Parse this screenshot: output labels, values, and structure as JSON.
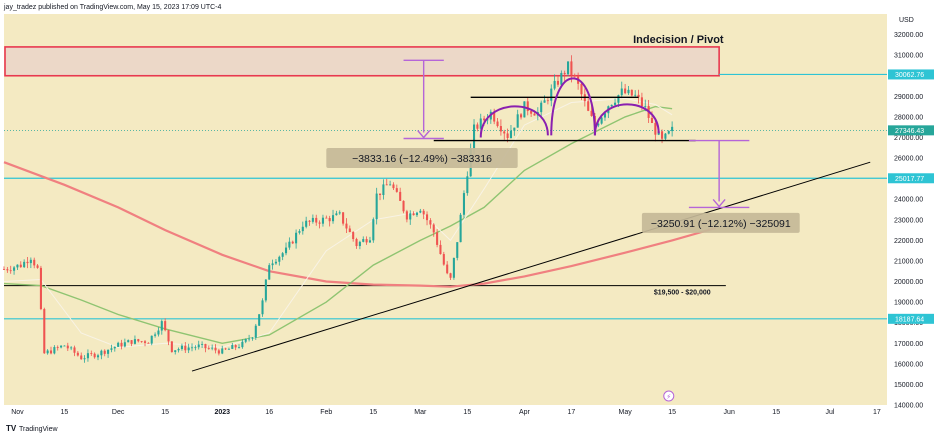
{
  "header": {
    "published": "jay_tradez published on TradingView.com, May 15, 2023 17:09 UTC-4"
  },
  "footer": {
    "brand": "TradingView"
  },
  "colors": {
    "background": "#f4eac2",
    "bull": "#26a69a",
    "bear": "#ef5350",
    "ma_slow": "#f08080",
    "ma_mid": "#8fc471",
    "ma_fast": "#f8f3e6",
    "cyan": "#2ec4d4",
    "zone_border": "#e8384f",
    "measure": "#b565d8",
    "pattern": "#8a1fb0"
  },
  "chart_data": {
    "type": "candlestick",
    "currency": "USD",
    "ylim": [
      14000,
      33000
    ],
    "y_ticks": [
      "32000.00",
      "31000.00",
      "30000.00",
      "29000.00",
      "28000.00",
      "27000.00",
      "26000.00",
      "25000.00",
      "24000.00",
      "23000.00",
      "22000.00",
      "21000.00",
      "20000.00",
      "19000.00",
      "18000.00",
      "17000.00",
      "16000.00",
      "15000.00",
      "14000.00"
    ],
    "x_range": [
      "2022-10-28",
      "2023-07-18"
    ],
    "x_ticks": [
      {
        "date": "2022-11-01",
        "label": "Nov"
      },
      {
        "date": "2022-11-15",
        "label": "15"
      },
      {
        "date": "2022-12-01",
        "label": "Dec"
      },
      {
        "date": "2022-12-15",
        "label": "15"
      },
      {
        "date": "2023-01-01",
        "label": "2023"
      },
      {
        "date": "2023-01-15",
        "label": "16"
      },
      {
        "date": "2023-02-01",
        "label": "Feb"
      },
      {
        "date": "2023-02-15",
        "label": "15"
      },
      {
        "date": "2023-03-01",
        "label": "Mar"
      },
      {
        "date": "2023-03-15",
        "label": "15"
      },
      {
        "date": "2023-04-01",
        "label": "Apr"
      },
      {
        "date": "2023-04-15",
        "label": "17"
      },
      {
        "date": "2023-05-01",
        "label": "May"
      },
      {
        "date": "2023-05-15",
        "label": "15"
      },
      {
        "date": "2023-06-01",
        "label": "Jun"
      },
      {
        "date": "2023-06-15",
        "label": "15"
      },
      {
        "date": "2023-07-01",
        "label": "Jul"
      },
      {
        "date": "2023-07-15",
        "label": "17"
      }
    ],
    "close_path": [
      [
        "2022-10-28",
        20600
      ],
      [
        "2022-11-02",
        20800
      ],
      [
        "2022-11-05",
        21200
      ],
      [
        "2022-11-07",
        20600
      ],
      [
        "2022-11-08",
        18500
      ],
      [
        "2022-11-09",
        16500
      ],
      [
        "2022-11-12",
        16700
      ],
      [
        "2022-11-15",
        16900
      ],
      [
        "2022-11-20",
        16300
      ],
      [
        "2022-11-25",
        16500
      ],
      [
        "2022-12-01",
        16900
      ],
      [
        "2022-12-05",
        17100
      ],
      [
        "2022-12-10",
        17100
      ],
      [
        "2022-12-14",
        18000
      ],
      [
        "2022-12-17",
        16700
      ],
      [
        "2022-12-25",
        16850
      ],
      [
        "2023-01-01",
        16600
      ],
      [
        "2023-01-07",
        16950
      ],
      [
        "2023-01-10",
        17400
      ],
      [
        "2023-01-13",
        19000
      ],
      [
        "2023-01-15",
        20900
      ],
      [
        "2023-01-20",
        21500
      ],
      [
        "2023-01-25",
        22800
      ],
      [
        "2023-01-31",
        23000
      ],
      [
        "2023-02-05",
        23200
      ],
      [
        "2023-02-10",
        21800
      ],
      [
        "2023-02-14",
        22200
      ],
      [
        "2023-02-16",
        24200
      ],
      [
        "2023-02-20",
        24800
      ],
      [
        "2023-02-25",
        23200
      ],
      [
        "2023-03-01",
        23600
      ],
      [
        "2023-03-05",
        22400
      ],
      [
        "2023-03-09",
        20300
      ],
      [
        "2023-03-10",
        20100
      ],
      [
        "2023-03-12",
        22000
      ],
      [
        "2023-03-14",
        24300
      ],
      [
        "2023-03-17",
        27400
      ],
      [
        "2023-03-22",
        28200
      ],
      [
        "2023-03-27",
        27100
      ],
      [
        "2023-04-01",
        28500
      ],
      [
        "2023-04-05",
        28200
      ],
      [
        "2023-04-10",
        29500
      ],
      [
        "2023-04-14",
        30450
      ],
      [
        "2023-04-17",
        29500
      ],
      [
        "2023-04-20",
        28200
      ],
      [
        "2023-04-22",
        27600
      ],
      [
        "2023-04-26",
        28600
      ],
      [
        "2023-04-30",
        29200
      ],
      [
        "2023-05-04",
        29000
      ],
      [
        "2023-05-07",
        28400
      ],
      [
        "2023-05-09",
        27600
      ],
      [
        "2023-05-12",
        26800
      ],
      [
        "2023-05-15",
        27346
      ]
    ],
    "moving_averages": [
      {
        "key": "ma200",
        "color": "#f08080",
        "points": [
          [
            "2022-10-28",
            25800
          ],
          [
            "2022-11-15",
            24700
          ],
          [
            "2022-12-01",
            23600
          ],
          [
            "2022-12-15",
            22500
          ],
          [
            "2023-01-01",
            21300
          ],
          [
            "2023-01-15",
            20500
          ],
          [
            "2023-02-01",
            20000
          ],
          [
            "2023-02-15",
            19850
          ],
          [
            "2023-03-01",
            19800
          ],
          [
            "2023-03-10",
            19750
          ],
          [
            "2023-03-20",
            19900
          ],
          [
            "2023-04-01",
            20250
          ],
          [
            "2023-04-15",
            20750
          ],
          [
            "2023-05-01",
            21400
          ],
          [
            "2023-05-15",
            22000
          ],
          [
            "2023-05-28",
            22600
          ]
        ]
      },
      {
        "key": "ma50",
        "color": "#8fc471",
        "points": [
          [
            "2022-10-28",
            19900
          ],
          [
            "2022-11-08",
            19800
          ],
          [
            "2022-11-20",
            19100
          ],
          [
            "2022-12-01",
            18400
          ],
          [
            "2022-12-15",
            17700
          ],
          [
            "2023-01-01",
            17000
          ],
          [
            "2023-01-15",
            17400
          ],
          [
            "2023-02-01",
            19000
          ],
          [
            "2023-02-15",
            20800
          ],
          [
            "2023-03-01",
            22000
          ],
          [
            "2023-03-10",
            22700
          ],
          [
            "2023-03-20",
            23600
          ],
          [
            "2023-04-01",
            25400
          ],
          [
            "2023-04-15",
            26700
          ],
          [
            "2023-05-01",
            28000
          ],
          [
            "2023-05-10",
            28500
          ],
          [
            "2023-05-15",
            28400
          ]
        ]
      },
      {
        "key": "ma20",
        "color": "#f8f3e6",
        "points": [
          [
            "2022-10-28",
            20000
          ],
          [
            "2022-11-08",
            20100
          ],
          [
            "2022-11-20",
            17500
          ],
          [
            "2022-12-01",
            16800
          ],
          [
            "2022-12-15",
            17000
          ],
          [
            "2023-01-01",
            16800
          ],
          [
            "2023-01-15",
            17500
          ],
          [
            "2023-02-01",
            21500
          ],
          [
            "2023-02-15",
            23000
          ],
          [
            "2023-03-01",
            23400
          ],
          [
            "2023-03-10",
            22000
          ],
          [
            "2023-03-20",
            24500
          ],
          [
            "2023-04-01",
            27600
          ],
          [
            "2023-04-15",
            28700
          ],
          [
            "2023-05-01",
            28900
          ],
          [
            "2023-05-10",
            28600
          ],
          [
            "2023-05-15",
            28100
          ]
        ]
      }
    ],
    "price_labels": [
      {
        "key": "resistance",
        "value": 30062.76,
        "text": "30062.76",
        "bg": "#2ec4d4",
        "fg": "#ffffff"
      },
      {
        "key": "current",
        "value": 27346.43,
        "text": "27346.43",
        "bg": "#26a69a",
        "fg": "#ffffff"
      },
      {
        "key": "support",
        "value": 25017.77,
        "text": "25017.77",
        "bg": "#2ec4d4",
        "fg": "#ffffff"
      },
      {
        "key": "low",
        "value": 18187.64,
        "text": "18187.64",
        "bg": "#2ec4d4",
        "fg": "#ffffff"
      }
    ],
    "horizontal_lines": [
      {
        "key": "resistance",
        "value": 30062.76,
        "color": "#2ec4d4",
        "from": "2023-05-29"
      },
      {
        "key": "support",
        "value": 25017.77,
        "color": "#2ec4d4",
        "from": "2022-10-28"
      },
      {
        "key": "low",
        "value": 18187.64,
        "color": "#2ec4d4",
        "from": "2022-10-28"
      }
    ],
    "indecision_zone": {
      "from": "2022-10-28",
      "to": "2023-05-29",
      "low": 30000,
      "high": 31400,
      "label": "Indecision / Pivot"
    },
    "neckline": {
      "from": "2023-03-05",
      "to": "2023-05-22",
      "value": 26850
    },
    "upper_line": {
      "from": "2023-03-16",
      "to": "2023-05-05",
      "value": 28950
    },
    "range_line": {
      "from": "2022-10-28",
      "to": "2023-05-31",
      "value": 19800,
      "label": "$19,500 - $20,000"
    },
    "trendline": {
      "from": [
        "2022-12-23",
        15650
      ],
      "to": [
        "2023-07-13",
        25800
      ]
    },
    "head_shoulders_arcs": [
      {
        "start": [
          "2023-03-19",
          27000
        ],
        "peak": [
          "2023-03-29",
          28800
        ],
        "end": [
          "2023-04-08",
          27100
        ]
      },
      {
        "start": [
          "2023-04-09",
          27100
        ],
        "peak": [
          "2023-04-15",
          30600
        ],
        "end": [
          "2023-04-22",
          27100
        ]
      },
      {
        "start": [
          "2023-04-22",
          27100
        ],
        "peak": [
          "2023-05-03",
          28900
        ],
        "end": [
          "2023-05-11",
          27200
        ]
      }
    ],
    "measurements": [
      {
        "key": "m1",
        "x": "2023-03-02",
        "from": 30750,
        "to": 26950,
        "cap_from": "2023-02-24",
        "cap_to": "2023-03-08",
        "text": "−3833.16 (−12.49%) −383316",
        "box_from": "2023-02-01",
        "box_to": "2023-03-30",
        "box_value": 26000
      },
      {
        "key": "m2",
        "x": "2023-05-29",
        "from": 26850,
        "to": 23600,
        "cap_from": "2023-05-20",
        "cap_to": "2023-06-07",
        "text": "−3250.91 (−12.12%) −325091",
        "box_from": "2023-05-06",
        "box_to": "2023-06-22",
        "box_value": 22850
      }
    ]
  }
}
